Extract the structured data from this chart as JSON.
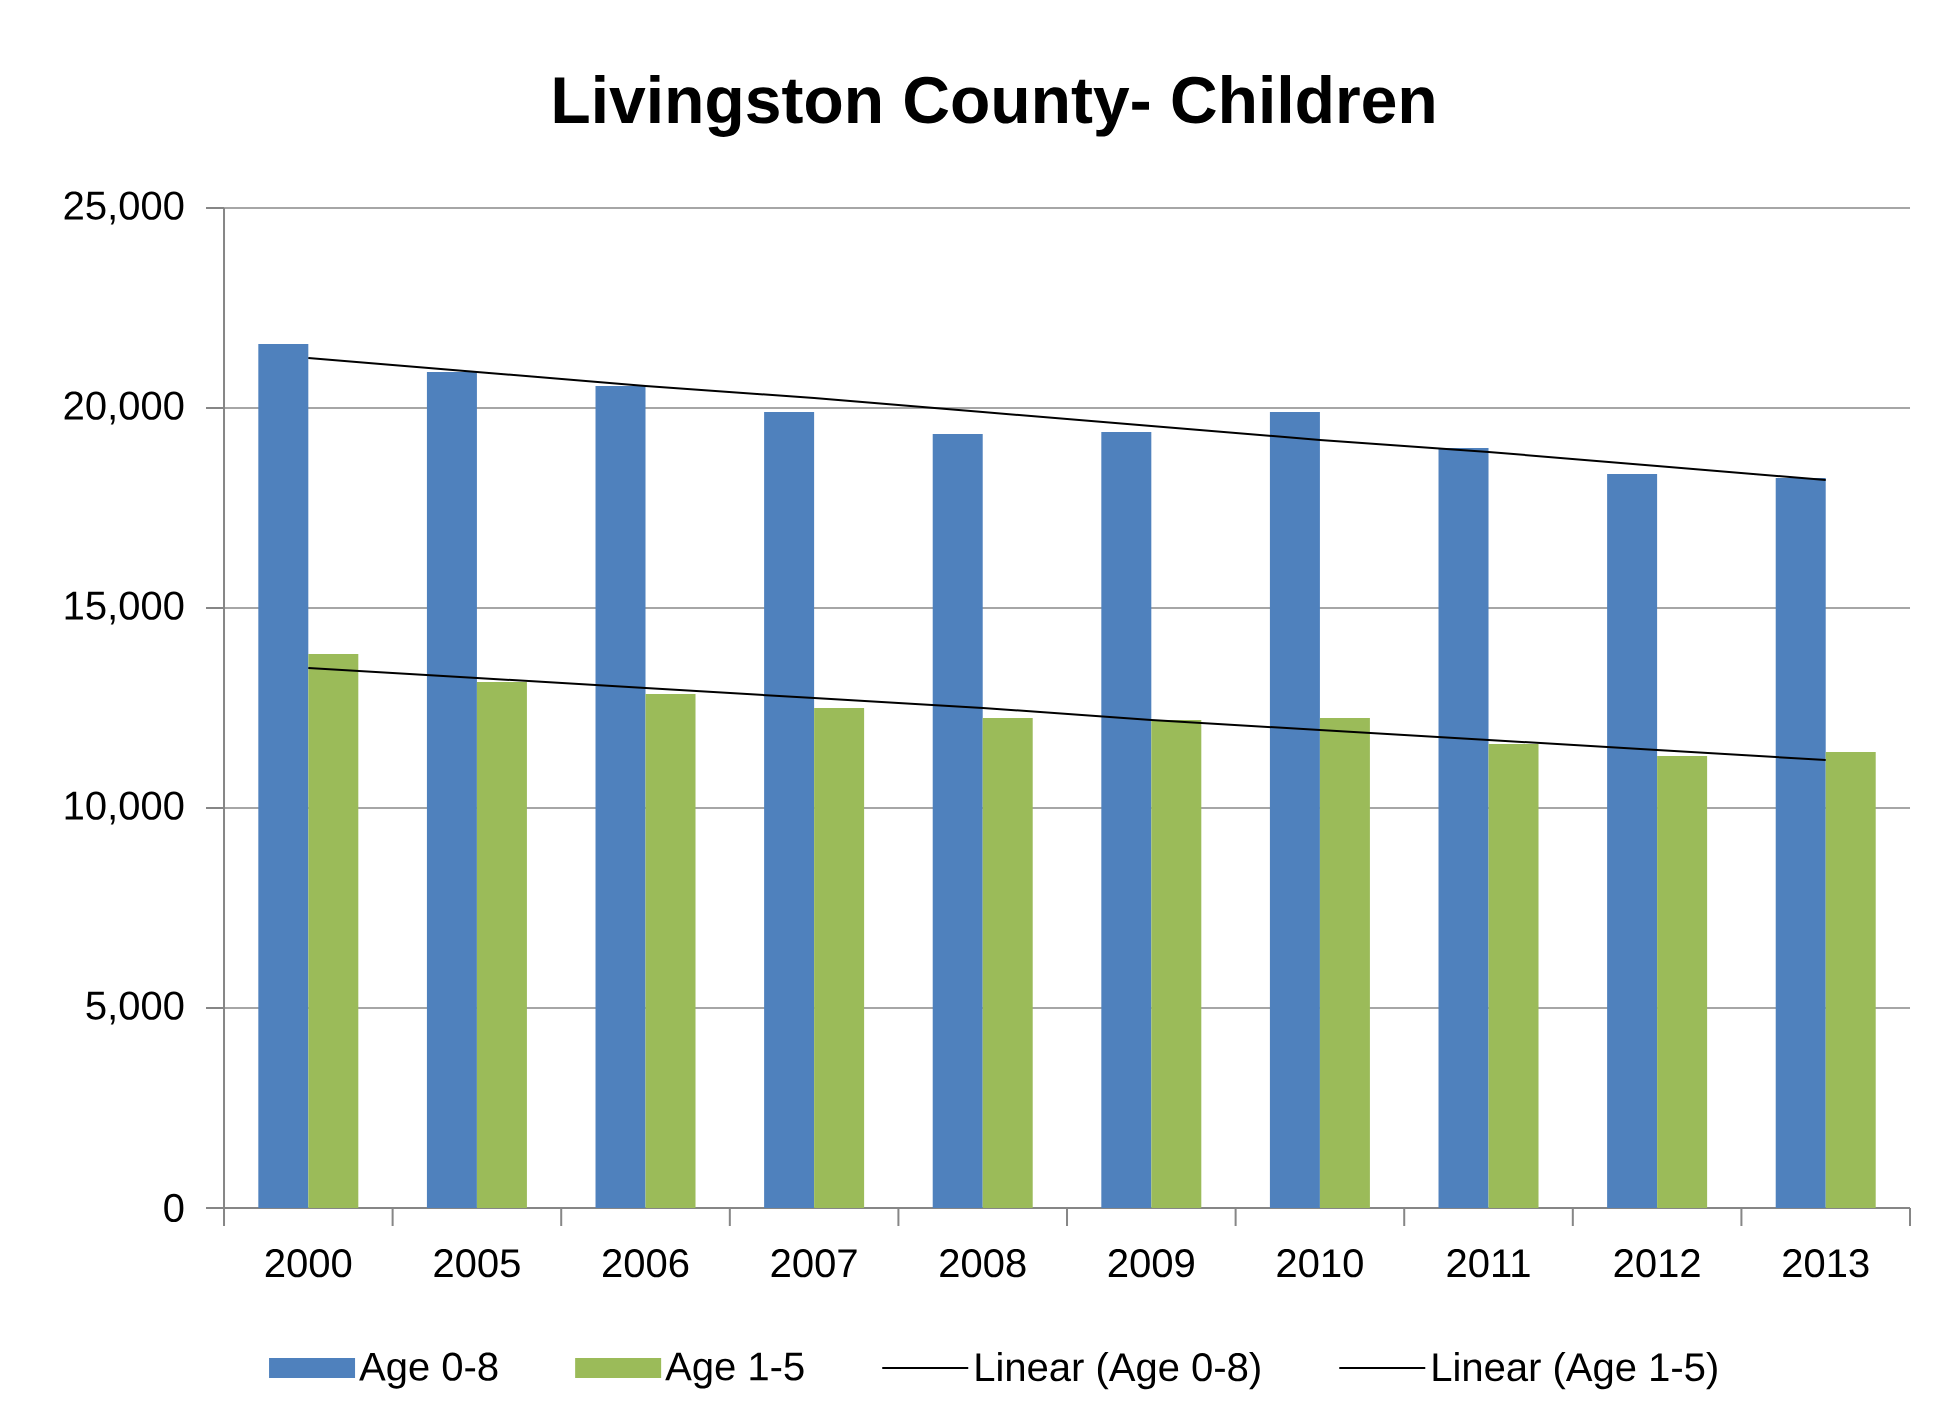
{
  "chart_data": {
    "type": "bar",
    "title": "Livingston County- Children",
    "categories": [
      "2000",
      "2005",
      "2006",
      "2007",
      "2008",
      "2009",
      "2010",
      "2011",
      "2012",
      "2013"
    ],
    "series": [
      {
        "name": "Age 0-8",
        "color": "#4f81bd",
        "values": [
          21600,
          20900,
          20550,
          19900,
          19350,
          19400,
          19900,
          19000,
          18350,
          18250
        ]
      },
      {
        "name": "Age 1-5",
        "color": "#9bbb59",
        "values": [
          13850,
          13150,
          12850,
          12500,
          12250,
          12200,
          12250,
          11600,
          11300,
          11400
        ]
      },
      {
        "name": "Linear (Age 0-8)",
        "type": "line",
        "color": "#000000",
        "values": [
          21250,
          20900,
          20550,
          20250,
          19900,
          19550,
          19200,
          18900,
          18550,
          18200
        ]
      },
      {
        "name": "Linear (Age 1-5)",
        "type": "line",
        "color": "#000000",
        "values": [
          13500,
          13250,
          13000,
          12750,
          12500,
          12200,
          11950,
          11700,
          11450,
          11200
        ]
      }
    ],
    "ylim": [
      0,
      25000
    ],
    "yticks": [
      0,
      {
        "value": 5000,
        "label": "5,000"
      },
      {
        "value": 10000,
        "label": "10,000"
      },
      {
        "value": 15000,
        "label": "15,000"
      },
      {
        "value": 20000,
        "label": "20,000"
      },
      {
        "value": 25000,
        "label": "25,000"
      }
    ],
    "grid": "y",
    "legend": "bottom"
  }
}
